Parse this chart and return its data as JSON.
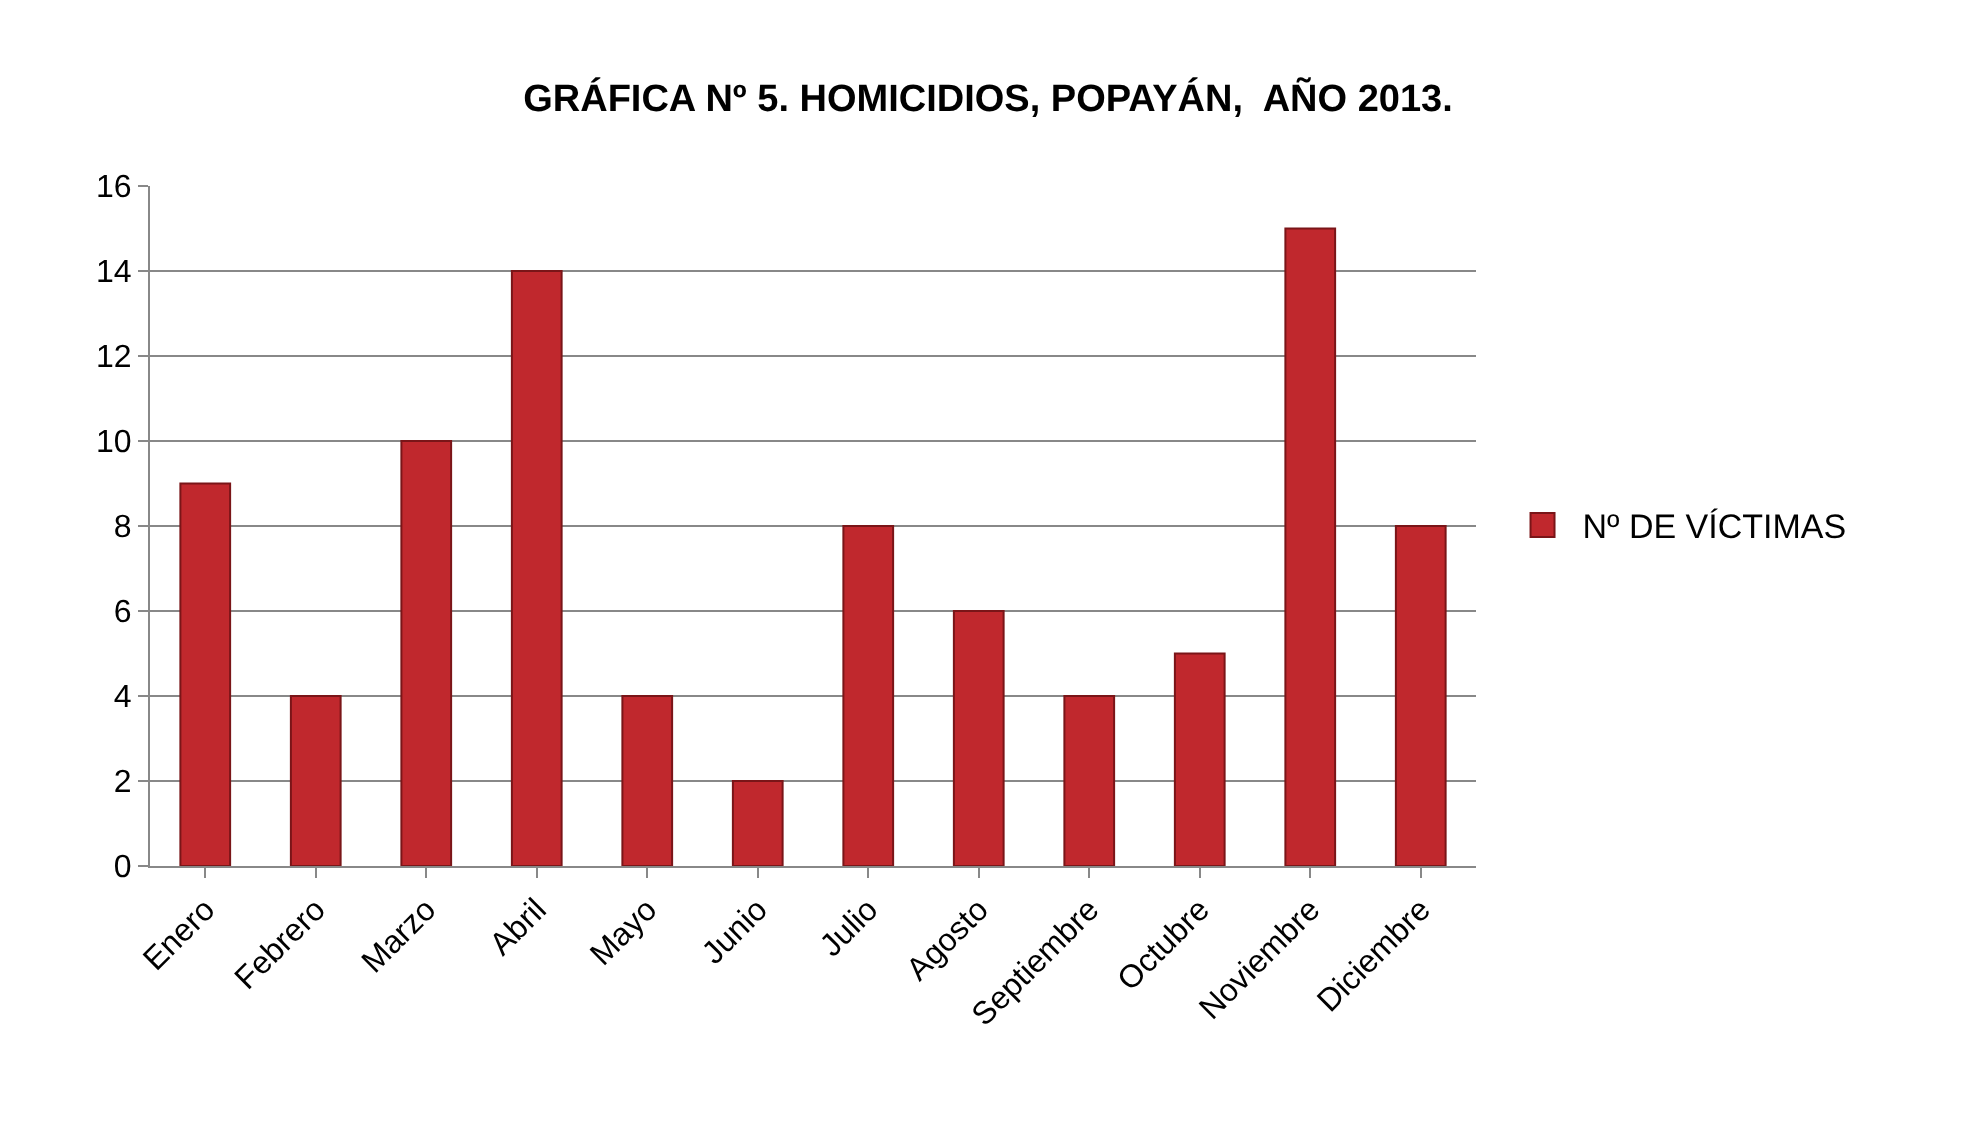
{
  "chart_data": {
    "type": "bar",
    "title": "GRÁFICA Nº 5. HOMICIDIOS, POPAYÁN,  AÑO 2013.",
    "categories": [
      "Enero",
      "Febrero",
      "Marzo",
      "Abril",
      "Mayo",
      "Junio",
      "Julio",
      "Agosto",
      "Septiembre",
      "Octubre",
      "Noviembre",
      "Diciembre"
    ],
    "series": [
      {
        "name": "Nº DE VÍCTIMAS",
        "color": "#c0282d",
        "values": [
          9,
          4,
          10,
          14,
          4,
          2,
          8,
          6,
          4,
          5,
          15,
          8
        ]
      }
    ],
    "ylim": [
      0,
      16
    ],
    "yticks": [
      0,
      2,
      4,
      6,
      8,
      10,
      12,
      14,
      16
    ],
    "grid": "y",
    "legend": "right"
  }
}
